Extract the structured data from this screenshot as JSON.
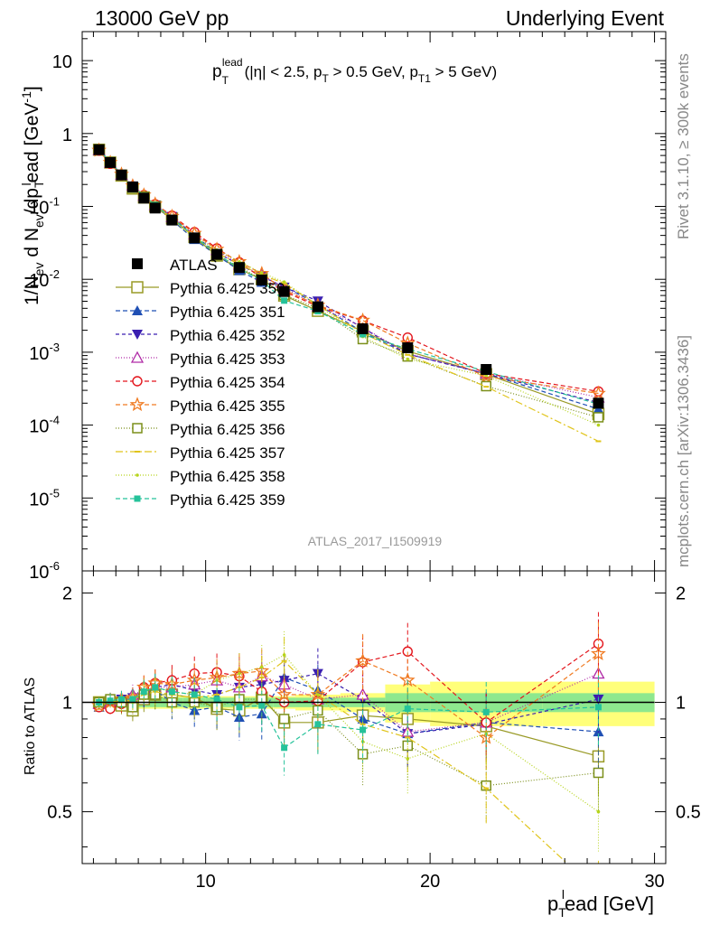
{
  "header": {
    "left": "13000 GeV pp",
    "right": "Underlying Event"
  },
  "side_labels": {
    "rivet": "Rivet 3.1.10, ≥ 300k events",
    "mcplots": "mcplots.cern.ch [arXiv:1306.3436]"
  },
  "chart_data": {
    "type": "line",
    "title": "",
    "annotation": {
      "main": "p",
      "sup": "lead",
      "sub": "T",
      "cuts": "(|η| < 2.5, p",
      "cut_sub1": "T",
      "cuts2": " > 0.5 GeV, p",
      "cut_sub2": "T1",
      "cuts3": " > 5 GeV)"
    },
    "watermark": "ATLAS_2017_I1509919",
    "xlabel": "p",
    "xlabel_sub": "T",
    "xlabel_sup": "l",
    "xlabel_rest": "ead [GeV]",
    "ylabel_parts": {
      "a": "1/N",
      "a_sub": "ev",
      "b": " d N",
      "b_sub": "ev",
      "c": "/dp",
      "c_sub": "T",
      "c_sup": "l",
      "d": "ead [GeV",
      "d_sup": "-1",
      "e": "]"
    },
    "ratio_ylabel": "Ratio to ATLAS",
    "xlim": [
      4.5,
      30.5
    ],
    "ylim": [
      1e-06,
      25
    ],
    "yscale": "log",
    "ratio_ylim": [
      0.36,
      2.3
    ],
    "ratio_yscale": "log",
    "x_ticks": [
      "10",
      "20",
      "30"
    ],
    "y_ticks": [
      {
        "m": "10",
        "e": "-6"
      },
      {
        "m": "10",
        "e": "-5"
      },
      {
        "m": "10",
        "e": "-4"
      },
      {
        "m": "10",
        "e": "-3"
      },
      {
        "m": "10",
        "e": "-2"
      },
      {
        "m": "10",
        "e": "-1"
      },
      {
        "m": "1",
        "e": ""
      },
      {
        "m": "10",
        "e": ""
      }
    ],
    "ratio_ticks": [
      "0.5",
      "1",
      "2"
    ],
    "legend_position": "middle-left",
    "x": [
      5.25,
      5.75,
      6.25,
      6.75,
      7.25,
      7.75,
      8.5,
      9.5,
      10.5,
      11.5,
      12.5,
      13.5,
      15,
      17,
      19,
      22.5,
      27.5
    ],
    "bin_edges": [
      5,
      5.5,
      6,
      6.5,
      7,
      7.5,
      8,
      9,
      10,
      11,
      12,
      13,
      14,
      16,
      18,
      20,
      25,
      30
    ],
    "ratio_band_inner": [
      0.03,
      0.03,
      0.03,
      0.03,
      0.03,
      0.03,
      0.03,
      0.03,
      0.03,
      0.03,
      0.03,
      0.03,
      0.03,
      0.03,
      0.06,
      0.06,
      0.06
    ],
    "ratio_band_outer": [
      0.04,
      0.04,
      0.04,
      0.04,
      0.04,
      0.04,
      0.04,
      0.04,
      0.04,
      0.04,
      0.04,
      0.04,
      0.05,
      0.06,
      0.12,
      0.14,
      0.14
    ],
    "reference": {
      "name": "ATLAS",
      "color": "#000000",
      "values": [
        0.6,
        0.4,
        0.27,
        0.185,
        0.13,
        0.095,
        0.065,
        0.037,
        0.022,
        0.0145,
        0.0098,
        0.0068,
        0.0042,
        0.0021,
        0.00115,
        0.00058,
        0.0002
      ]
    },
    "series": [
      {
        "name": "Pythia 6.425 350",
        "color": "#999a26",
        "marker": "open-square-large",
        "dash": "",
        "ratio": [
          1.0,
          1.0,
          0.98,
          0.95,
          1.02,
          1.05,
          1.05,
          1.03,
          0.96,
          0.95,
          1.03,
          0.88,
          0.88,
          0.92,
          0.9,
          0.86,
          0.71
        ]
      },
      {
        "name": "Pythia 6.425 351",
        "color": "#1f4fb4",
        "marker": "triangle-up",
        "dash": "5,3",
        "ratio": [
          0.97,
          1.02,
          1.0,
          1.02,
          1.05,
          1.08,
          1.0,
          0.95,
          0.97,
          0.91,
          0.93,
          1.17,
          1.08,
          0.9,
          0.82,
          0.88,
          0.83
        ]
      },
      {
        "name": "Pythia 6.425 352",
        "color": "#3a1fb0",
        "marker": "triangle-down",
        "dash": "4,3",
        "ratio": [
          0.98,
          1.01,
          1.02,
          1.03,
          1.04,
          1.1,
          1.12,
          1.08,
          1.05,
          1.1,
          1.12,
          1.15,
          1.2,
          1.02,
          0.82,
          0.87,
          1.02
        ]
      },
      {
        "name": "Pythia 6.425 353",
        "color": "#b02aa6",
        "marker": "open-triangle-up",
        "dash": "1,2",
        "ratio": [
          0.99,
          1.0,
          1.01,
          1.05,
          1.08,
          1.1,
          1.1,
          1.12,
          1.15,
          1.1,
          1.18,
          1.12,
          1.02,
          1.05,
          0.83,
          0.88,
          1.2
        ]
      },
      {
        "name": "Pythia 6.425 354",
        "color": "#e3151c",
        "marker": "open-circle",
        "dash": "5,3",
        "ratio": [
          0.97,
          0.96,
          0.99,
          0.99,
          1.1,
          1.13,
          1.15,
          1.2,
          1.21,
          1.18,
          1.07,
          1.0,
          1.01,
          1.29,
          1.38,
          0.88,
          1.45
        ]
      },
      {
        "name": "Pythia 6.425 355",
        "color": "#f07b22",
        "marker": "open-star",
        "dash": "5,3",
        "ratio": [
          0.98,
          1.0,
          1.02,
          1.03,
          1.1,
          1.13,
          1.12,
          1.15,
          1.17,
          1.2,
          1.22,
          1.05,
          1.05,
          1.3,
          1.15,
          0.8,
          1.36
        ]
      },
      {
        "name": "Pythia 6.425 356",
        "color": "#7b8f1a",
        "marker": "open-square",
        "dash": "1,2",
        "ratio": [
          1.0,
          1.02,
          1.0,
          0.97,
          1.05,
          1.05,
          1.0,
          1.0,
          0.97,
          1.02,
          1.02,
          0.9,
          0.95,
          0.72,
          0.76,
          0.59,
          0.64
        ]
      },
      {
        "name": "Pythia 6.425 357",
        "color": "#e0c41a",
        "marker": "dash-dot",
        "dash": "8,3,2,3",
        "ratio": [
          0.99,
          1.01,
          1.0,
          1.02,
          1.05,
          1.07,
          1.05,
          1.03,
          1.05,
          1.1,
          1.17,
          1.3,
          1.05,
          0.87,
          0.8,
          0.58,
          0.3
        ]
      },
      {
        "name": "Pythia 6.425 358",
        "color": "#b6d41b",
        "marker": "dot",
        "dash": "1,2",
        "ratio": [
          0.98,
          1.0,
          1.01,
          1.0,
          1.08,
          1.1,
          1.07,
          1.05,
          1.15,
          1.2,
          1.25,
          1.35,
          1.05,
          0.78,
          0.7,
          0.82,
          0.5
        ]
      },
      {
        "name": "Pythia 6.425 359",
        "color": "#25c29a",
        "marker": "filled-square",
        "dash": "5,3",
        "ratio": [
          1.0,
          1.01,
          1.02,
          1.02,
          1.07,
          1.1,
          1.07,
          1.05,
          1.02,
          0.97,
          0.98,
          0.75,
          0.87,
          0.84,
          0.96,
          0.94,
          0.97
        ]
      }
    ]
  }
}
